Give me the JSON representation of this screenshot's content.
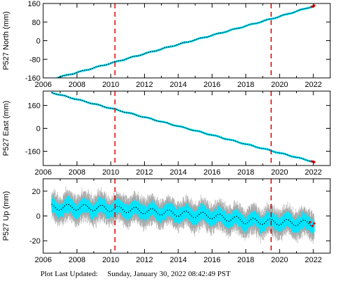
{
  "footer": {
    "label": "Plot Last Updated:",
    "timestamp": "Sunday, January 30, 2022 08:42:49 PST"
  },
  "chart_data": [
    {
      "type": "scatter",
      "title": "",
      "ylabel": "P527 North (mm)",
      "xlim": [
        2006,
        2023
      ],
      "ylim": [
        -160,
        160
      ],
      "xticks": [
        2006,
        2008,
        2010,
        2012,
        2014,
        2016,
        2018,
        2020,
        2022
      ],
      "yticks": [
        -160,
        -80,
        0,
        80,
        160
      ],
      "data_start": 2006.5,
      "data_end": 2022.05,
      "series": [
        {
          "kind": "error",
          "color": "#00e5ff",
          "x": [
            2006.5,
            2008,
            2010,
            2012,
            2014,
            2016,
            2018,
            2020,
            2022.05
          ],
          "y": [
            -165,
            -137,
            -97,
            -56,
            -16,
            23,
            63,
            104,
            150
          ]
        },
        {
          "kind": "filtered",
          "color": "#000000",
          "x": [
            2006.5,
            2008,
            2010,
            2012,
            2014,
            2016,
            2018,
            2020,
            2022.05
          ],
          "y": [
            -165,
            -137,
            -97,
            -56,
            -16,
            23,
            63,
            104,
            150
          ]
        },
        {
          "kind": "recent",
          "color": "#e00000",
          "x": [
            2021.9,
            2022.0,
            2022.05
          ],
          "y": [
            146,
            148,
            151
          ]
        }
      ],
      "events": [
        2010.25,
        2019.5
      ],
      "event_color": "#e00000"
    },
    {
      "type": "scatter",
      "title": "",
      "ylabel": "P527 East (mm)",
      "xlim": [
        2006,
        2023
      ],
      "ylim": [
        -260,
        260
      ],
      "xticks": [
        2006,
        2008,
        2010,
        2012,
        2014,
        2016,
        2018,
        2020,
        2022
      ],
      "yticks": [
        -160,
        0,
        160
      ],
      "data_start": 2006.5,
      "data_end": 2022.05,
      "series": [
        {
          "kind": "error",
          "color": "#00e5ff",
          "x": [
            2006.5,
            2008,
            2010,
            2012,
            2014,
            2016,
            2018,
            2020,
            2022.05
          ],
          "y": [
            250,
            202,
            140,
            78,
            15,
            -47,
            -110,
            -172,
            -235
          ]
        },
        {
          "kind": "filtered",
          "color": "#000000",
          "x": [
            2006.5,
            2008,
            2010,
            2012,
            2014,
            2016,
            2018,
            2020,
            2022.05
          ],
          "y": [
            250,
            202,
            140,
            78,
            15,
            -47,
            -110,
            -172,
            -235
          ]
        },
        {
          "kind": "recent",
          "color": "#e00000",
          "x": [
            2021.9,
            2022.0,
            2022.05
          ],
          "y": [
            -231,
            -233,
            -236
          ]
        }
      ],
      "events": [
        2010.25,
        2019.5
      ],
      "event_color": "#e00000"
    },
    {
      "type": "scatter",
      "title": "",
      "ylabel": "P527 Up (mm)",
      "xlim": [
        2006,
        2023
      ],
      "ylim": [
        -30,
        30
      ],
      "xticks": [
        2006,
        2008,
        2010,
        2012,
        2014,
        2016,
        2018,
        2020,
        2022
      ],
      "yticks": [
        -20,
        0,
        20
      ],
      "data_start": 2006.5,
      "data_end": 2022.05,
      "series": [
        {
          "kind": "error",
          "color": "#00e5ff",
          "x": [
            2006.5,
            2008,
            2010,
            2012,
            2014,
            2016,
            2018,
            2020,
            2022.05
          ],
          "y": [
            7,
            7,
            6,
            4,
            2,
            0,
            -4,
            -5,
            -6
          ]
        },
        {
          "kind": "filtered",
          "color": "#000000",
          "x": [
            2006.5,
            2008,
            2010,
            2012,
            2014,
            2016,
            2018,
            2020,
            2022.05
          ],
          "y": [
            7,
            7,
            6,
            4,
            2,
            0,
            -4,
            -5,
            -6
          ]
        },
        {
          "kind": "recent",
          "color": "#e00000",
          "x": [
            2021.8,
            2021.95,
            2022.05
          ],
          "y": [
            -5,
            -8,
            -6
          ]
        }
      ],
      "events": [
        2010.25,
        2019.5
      ],
      "event_color": "#e00000"
    }
  ]
}
